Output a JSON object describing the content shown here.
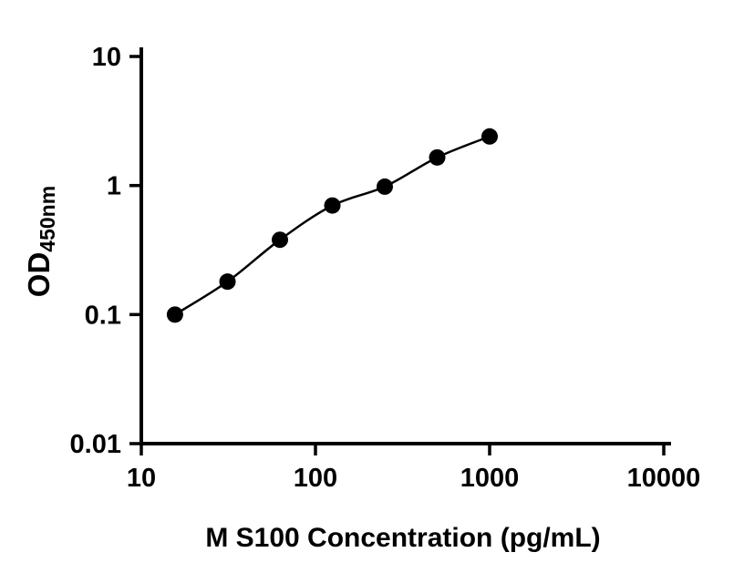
{
  "figure": {
    "background": "#ffffff"
  },
  "chart_data": {
    "type": "scatter",
    "x_scale": "log",
    "y_scale": "log",
    "x": [
      15.6,
      31.25,
      62.5,
      125,
      250,
      500,
      1000
    ],
    "y": [
      0.1,
      0.18,
      0.38,
      0.7,
      0.98,
      1.65,
      2.4
    ],
    "xlim": [
      10,
      10000
    ],
    "ylim": [
      0.01,
      10
    ],
    "x_ticks": [
      10,
      100,
      1000,
      10000
    ],
    "x_tick_labels": [
      "10",
      "100",
      "1000",
      "10000"
    ],
    "y_ticks": [
      0.01,
      0.1,
      1,
      10
    ],
    "y_tick_labels": [
      "0.01",
      "0.1",
      "1",
      "10"
    ],
    "xlabel": "M S100 Concentration (pg/mL)",
    "ylabel_main": "OD",
    "ylabel_sub": "450nm",
    "title": "",
    "legend": false,
    "grid": false,
    "curve": "smooth",
    "marker": "filled-circle",
    "marker_color": "#000000",
    "line_color": "#000000",
    "axis_color": "#000000",
    "text_color": "#000000"
  }
}
